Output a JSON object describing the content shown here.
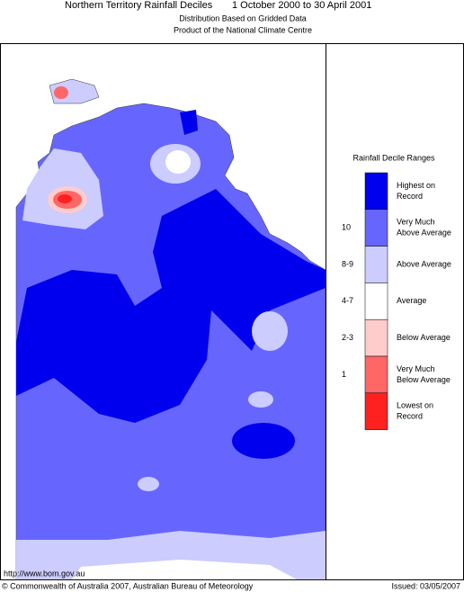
{
  "header": {
    "title": "Northern Territory Rainfall Deciles",
    "period": "1 October 2000 to 30 April 2001",
    "subtitle": "Distribution Based on Gridded Data",
    "product": "Product of the National Climate Centre"
  },
  "legend": {
    "title": "Rainfall Decile Ranges",
    "items": [
      {
        "lines": [
          "Highest on",
          "Record"
        ],
        "color": "#0000ee"
      },
      {
        "range": "10",
        "lines": [
          "Very Much",
          "Above Average"
        ],
        "color": "#6666ff"
      },
      {
        "range": "8-9",
        "lines": [
          "Above Average"
        ],
        "color": "#ccccff"
      },
      {
        "range": "4-7",
        "lines": [
          "Average"
        ],
        "color": "#ffffff"
      },
      {
        "range": "2-3",
        "lines": [
          "Below Average"
        ],
        "color": "#ffcccc"
      },
      {
        "range": "1",
        "lines": [
          "Very Much",
          "Below Average"
        ],
        "color": "#ff6666"
      },
      {
        "lines": [
          "Lowest on",
          "Record"
        ],
        "color": "#ff2020"
      }
    ]
  },
  "footer": {
    "url": "http://www.bom.gov.au",
    "copyright": "© Commonwealth of Australia 2007, Australian Bureau of Meteorology",
    "issued": "Issued: 03/05/2007"
  }
}
